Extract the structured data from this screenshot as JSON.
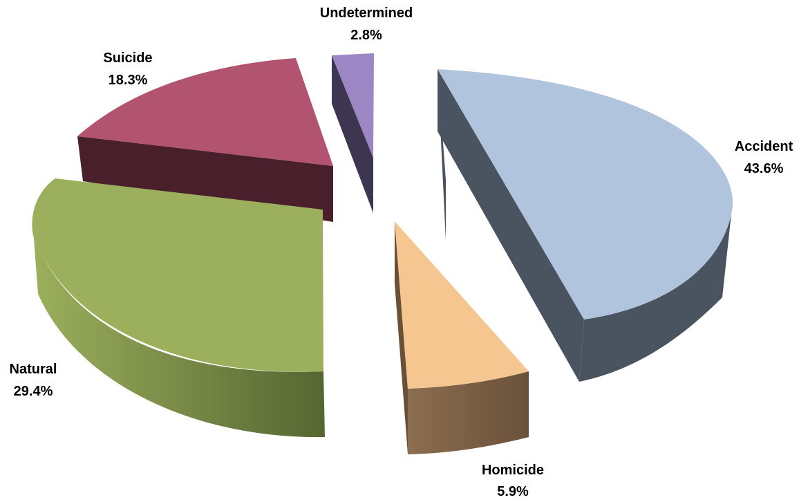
{
  "chart_data": {
    "type": "pie",
    "style": "3d-exploded",
    "title": "",
    "legend": "none",
    "slices": [
      {
        "label": "Accident",
        "value": 43.6,
        "value_label": "43.6%",
        "color": "#B0C4DE",
        "side_color": "#4A5360"
      },
      {
        "label": "Homicide",
        "value": 5.9,
        "value_label": "5.9%",
        "color": "#F5C690",
        "side_color": "#7F6347"
      },
      {
        "label": "Natural",
        "value": 29.4,
        "value_label": "29.4%",
        "color": "#9BAF5C",
        "side_color": "#6E8040"
      },
      {
        "label": "Suicide",
        "value": 18.3,
        "value_label": "18.3%",
        "color": "#B2536F",
        "side_color": "#4A1F2C"
      },
      {
        "label": "Undetermined",
        "value": 2.8,
        "value_label": "2.8%",
        "color": "#9C86C4",
        "side_color": "#3E3650"
      }
    ]
  }
}
